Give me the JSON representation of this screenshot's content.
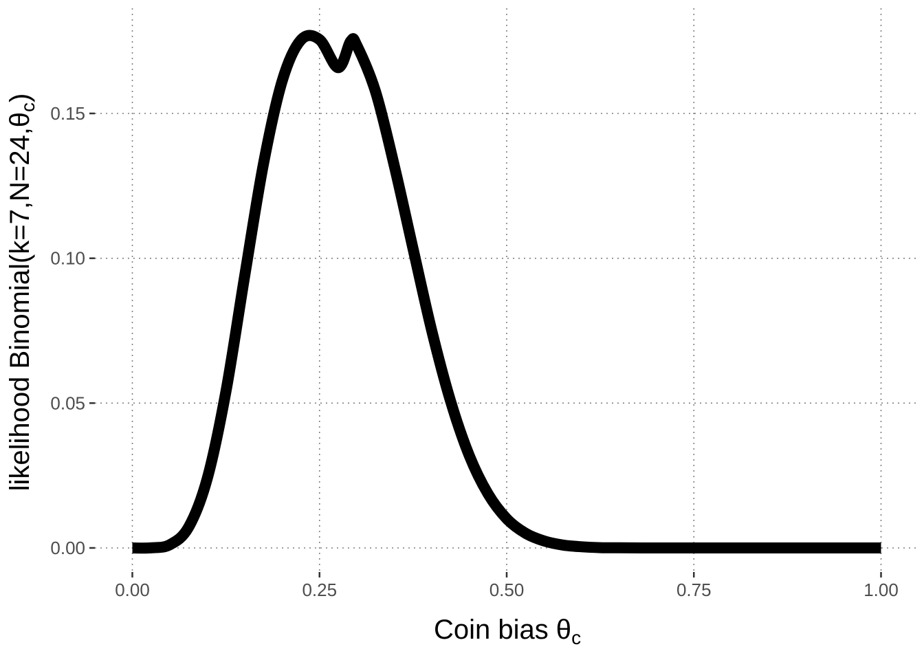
{
  "chart_data": {
    "type": "line",
    "title": "",
    "xlabel": {
      "main": "Coin bias θ",
      "sub": "c"
    },
    "ylabel": {
      "main": "likelihood Binomial(k=7,N=24,θ",
      "sub": "c",
      "close": ")"
    },
    "xlim": [
      0,
      1
    ],
    "ylim": [
      0,
      0.18
    ],
    "x_ticks": [
      0,
      0.25,
      0.5,
      0.75,
      1
    ],
    "x_tick_labels": [
      "0.00",
      "0.25",
      "0.50",
      "0.75",
      "1.00"
    ],
    "y_ticks": [
      0,
      0.05,
      0.1,
      0.15
    ],
    "y_tick_labels": [
      "0.00",
      "0.05",
      "0.10",
      "0.15"
    ],
    "grid": true,
    "series": [
      {
        "color": "#000000",
        "x": [
          0,
          0.025,
          0.05,
          0.075,
          0.1,
          0.125,
          0.15,
          0.175,
          0.2,
          0.225,
          0.25,
          0.275,
          0.2917,
          0.3,
          0.325,
          0.35,
          0.375,
          0.4,
          0.425,
          0.45,
          0.475,
          0.5,
          0.525,
          0.55,
          0.575,
          0.6,
          0.625,
          0.65,
          0.7,
          0.75,
          0.8,
          0.85,
          0.9,
          0.95,
          1
        ],
        "y": [
          0,
          3e-05,
          0.0011,
          0.0071,
          0.0239,
          0.054,
          0.0938,
          0.1324,
          0.1611,
          0.1753,
          0.1755,
          0.1658,
          0.175,
          0.1734,
          0.1574,
          0.1318,
          0.1032,
          0.0749,
          0.0507,
          0.0319,
          0.0187,
          0.0101,
          0.0051,
          0.0024,
          0.001,
          0.0004,
          0.0001,
          5e-05,
          0,
          0,
          0,
          0,
          0,
          0,
          0
        ]
      }
    ]
  }
}
